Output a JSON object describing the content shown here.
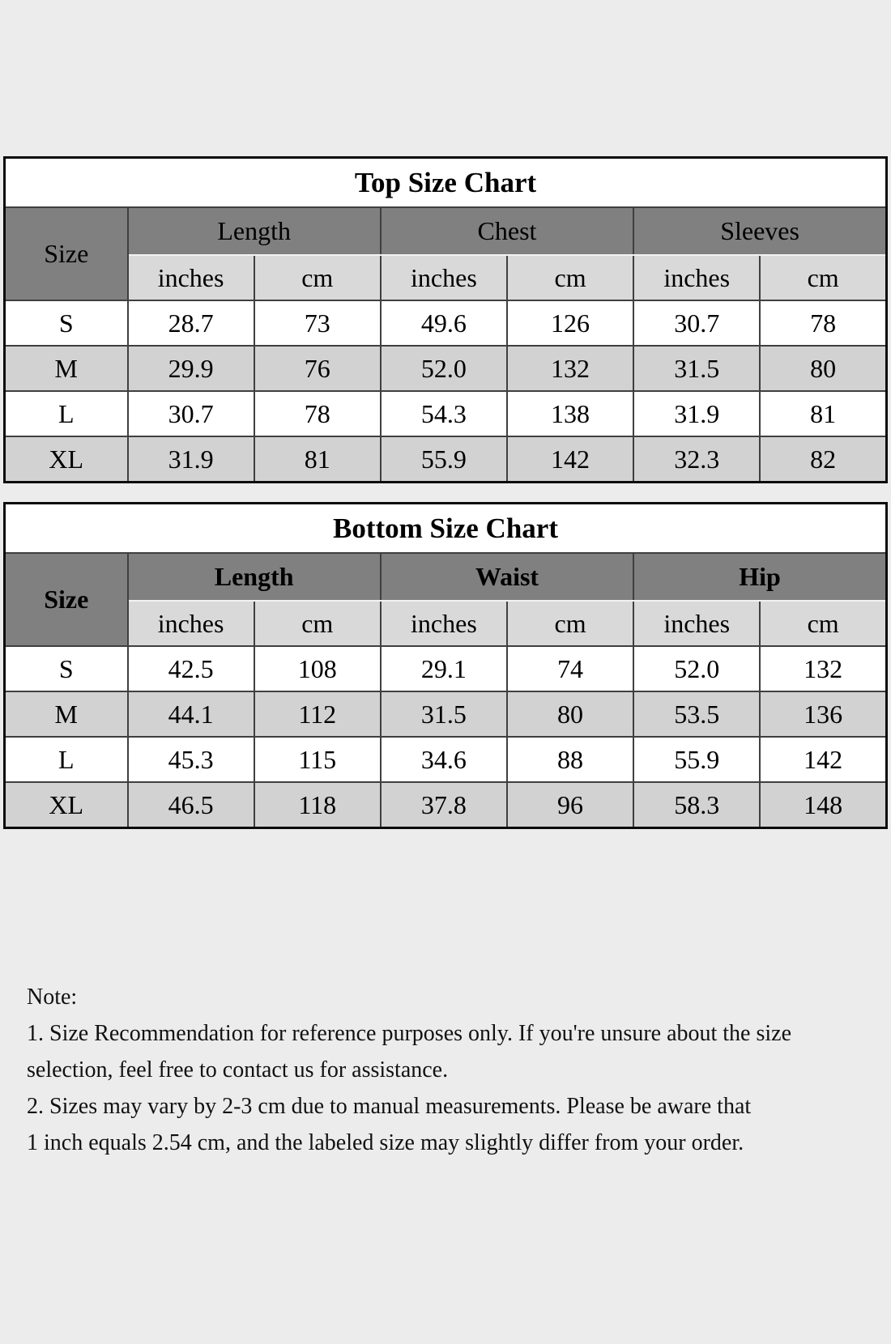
{
  "page": {
    "background_color": "#ececec",
    "header_dark_color": "#808080",
    "subheader_light_color": "#d9d9d9",
    "row_alt_color": "#d2d2d2",
    "border_color": "#0a0a0a"
  },
  "top_chart": {
    "title": "Top Size Chart",
    "size_label": "Size",
    "groups": [
      {
        "label": "Length"
      },
      {
        "label": "Chest"
      },
      {
        "label": "Sleeves"
      }
    ],
    "unit_labels": [
      "inches",
      "cm",
      "inches",
      "cm",
      "inches",
      "cm"
    ],
    "rows": [
      {
        "size": "S",
        "values": [
          "28.7",
          "73",
          "49.6",
          "126",
          "30.7",
          "78"
        ]
      },
      {
        "size": "M",
        "values": [
          "29.9",
          "76",
          "52.0",
          "132",
          "31.5",
          "80"
        ]
      },
      {
        "size": "L",
        "values": [
          "30.7",
          "78",
          "54.3",
          "138",
          "31.9",
          "81"
        ]
      },
      {
        "size": "XL",
        "values": [
          "31.9",
          "81",
          "55.9",
          "142",
          "32.3",
          "82"
        ]
      }
    ]
  },
  "bottom_chart": {
    "title": "Bottom Size Chart",
    "size_label": "Size",
    "groups": [
      {
        "label": "Length"
      },
      {
        "label": "Waist"
      },
      {
        "label": "Hip"
      }
    ],
    "unit_labels": [
      "inches",
      "cm",
      "inches",
      "cm",
      "inches",
      "cm"
    ],
    "rows": [
      {
        "size": "S",
        "values": [
          "42.5",
          "108",
          "29.1",
          "74",
          "52.0",
          "132"
        ]
      },
      {
        "size": "M",
        "values": [
          "44.1",
          "112",
          "31.5",
          "80",
          "53.5",
          "136"
        ]
      },
      {
        "size": "L",
        "values": [
          "45.3",
          "115",
          "34.6",
          "88",
          "55.9",
          "142"
        ]
      },
      {
        "size": "XL",
        "values": [
          "46.5",
          "118",
          "37.8",
          "96",
          "58.3",
          "148"
        ]
      }
    ]
  },
  "note": {
    "lines": [
      "Note:",
      "1. Size Recommendation for reference purposes only. If you're unsure about the size",
      "selection, feel free to contact us for assistance.",
      "2. Sizes may vary by 2-3 cm due to manual measurements. Please be aware that",
      "1 inch equals 2.54 cm, and the labeled size may slightly differ from your order."
    ]
  }
}
